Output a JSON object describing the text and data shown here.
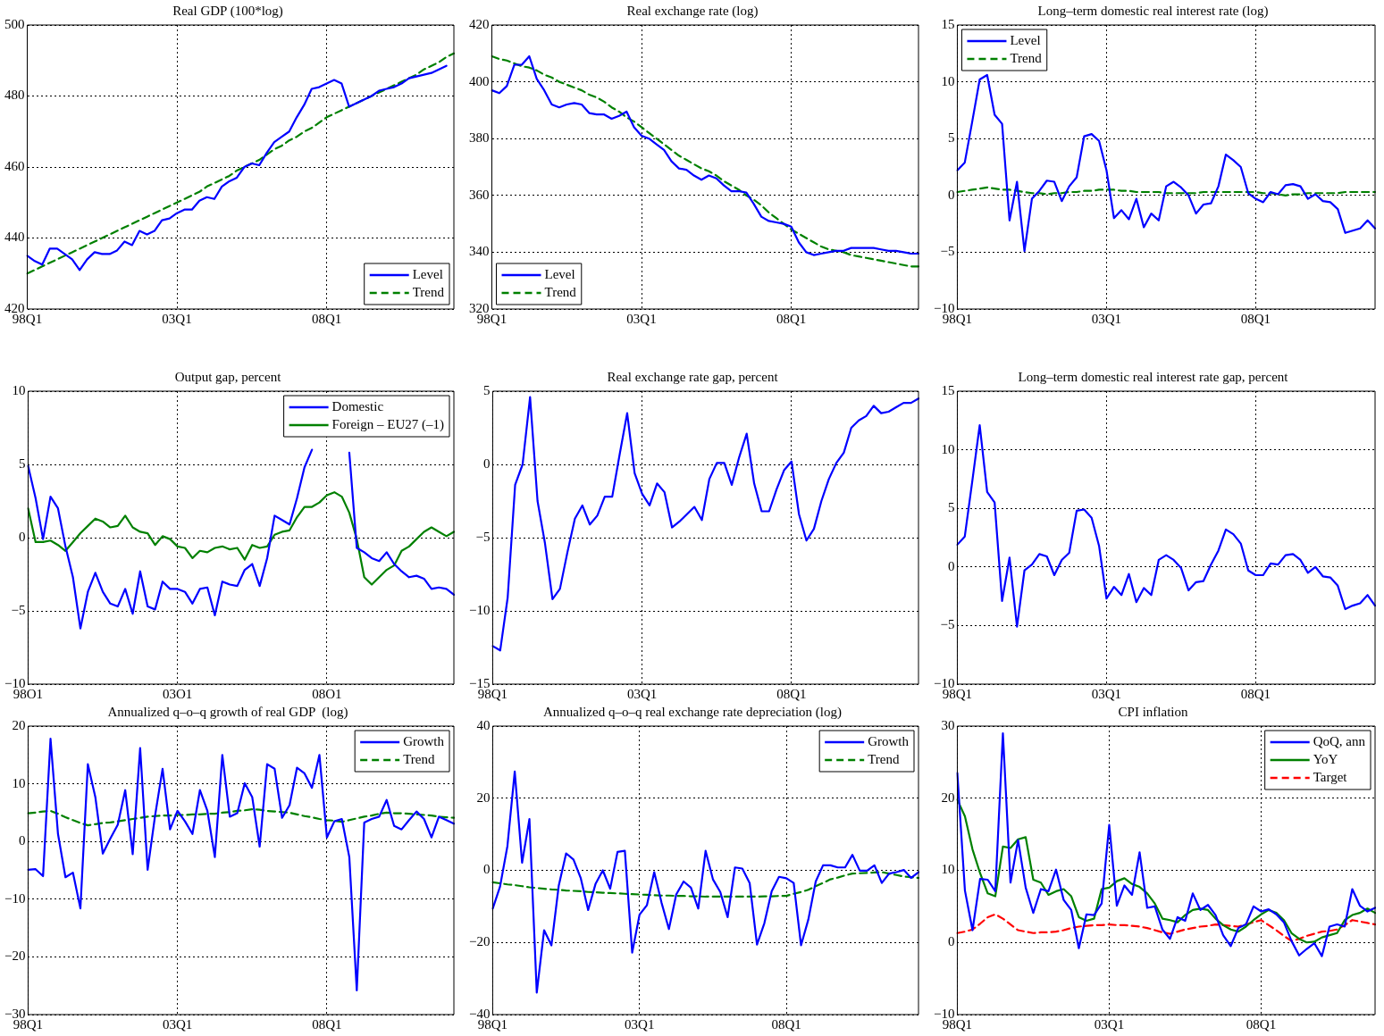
{
  "chart_data": [
    {
      "type": "line",
      "title": "Real GDP (100*log)",
      "categories": [
        "98Q1",
        null,
        null,
        null,
        null,
        null,
        null,
        null,
        null,
        null,
        null,
        null,
        null,
        null,
        null,
        null,
        null,
        null,
        null,
        null,
        "03Q1",
        null,
        null,
        null,
        null,
        null,
        null,
        null,
        null,
        null,
        null,
        null,
        null,
        null,
        null,
        null,
        null,
        null,
        null,
        null,
        "08Q1",
        null,
        null,
        null,
        null,
        null,
        null,
        null,
        null,
        null,
        null,
        null,
        null,
        null,
        null,
        null,
        null,
        null
      ],
      "ylim": [
        420,
        500
      ],
      "yticks": [
        420,
        440,
        460,
        480,
        500
      ],
      "grid": true,
      "legend": "bottom right",
      "series": [
        {
          "name": "Level",
          "color": "#0000ff",
          "line_style": "solid",
          "values": [
            435,
            433.5,
            432.5,
            437,
            437,
            435.5,
            434,
            431,
            434,
            436,
            435.5,
            435.5,
            436.5,
            439,
            438,
            442,
            441,
            442,
            445,
            445.5,
            447,
            448,
            448,
            450.5,
            451.5,
            451,
            454.5,
            456,
            457,
            460,
            461,
            460.5,
            464,
            467,
            468.5,
            470,
            474,
            477.5,
            482,
            482.5,
            483.5,
            484.5,
            483.5,
            477,
            478,
            479,
            480,
            481.5,
            482,
            482.5,
            483.5,
            485,
            485.5,
            486,
            486.5,
            487.5,
            488.5,
            null
          ]
        },
        {
          "name": "Trend",
          "color": "#008000",
          "line_style": "dashed",
          "values": [
            430,
            431,
            432,
            433,
            434,
            435,
            436,
            437,
            438,
            439,
            440,
            441,
            442,
            443,
            444,
            445,
            446,
            447,
            448,
            449,
            450,
            451,
            452,
            453,
            454.5,
            455.5,
            456.5,
            457.5,
            459,
            460,
            461,
            462,
            463.5,
            465,
            466,
            467.5,
            468.5,
            470,
            471,
            472.5,
            474,
            475,
            476,
            477,
            478,
            479,
            480,
            481,
            482,
            483,
            484,
            485,
            486,
            487.5,
            488.5,
            489.5,
            491,
            492
          ]
        }
      ]
    },
    {
      "type": "line",
      "title": "Real exchange rate (log)",
      "categories": [
        "98Q1",
        null,
        null,
        null,
        null,
        null,
        null,
        null,
        null,
        null,
        null,
        null,
        null,
        null,
        null,
        null,
        null,
        null,
        null,
        null,
        "03Q1",
        null,
        null,
        null,
        null,
        null,
        null,
        null,
        null,
        null,
        null,
        null,
        null,
        null,
        null,
        null,
        null,
        null,
        null,
        null,
        "08Q1",
        null,
        null,
        null,
        null,
        null,
        null,
        null,
        null,
        null,
        null,
        null,
        null,
        null,
        null,
        null,
        null,
        null
      ],
      "ylim": [
        320,
        420
      ],
      "yticks": [
        320,
        340,
        360,
        380,
        400,
        420
      ],
      "grid": true,
      "legend": "bottom left",
      "series": [
        {
          "name": "Level",
          "color": "#0000ff",
          "line_style": "solid",
          "values": [
            397,
            396,
            398.5,
            406,
            406,
            409,
            401,
            397,
            392,
            391,
            392,
            392.5,
            392,
            389,
            388.5,
            388.5,
            387,
            388,
            389.5,
            384,
            381,
            380,
            378,
            376,
            372,
            369.5,
            369,
            367,
            365.5,
            367,
            366,
            363.5,
            361.5,
            361.5,
            361,
            357,
            352.5,
            351,
            350.5,
            350,
            349,
            343.5,
            340,
            339,
            339.5,
            340,
            340.5,
            340.5,
            341.5,
            341.5,
            341.5,
            341.5,
            341,
            340.5,
            340.5,
            340,
            339.5,
            339.5
          ]
        },
        {
          "name": "Trend",
          "color": "#008000",
          "line_style": "dashed",
          "values": [
            409,
            408,
            407.5,
            406.5,
            405.5,
            405,
            404,
            402.5,
            401.5,
            400,
            399,
            398,
            397,
            395.5,
            394.5,
            393,
            391,
            389.5,
            387.5,
            386,
            384,
            382,
            380,
            378,
            376,
            374,
            372.5,
            371,
            369.5,
            368.5,
            367,
            365,
            363.5,
            362,
            360,
            358.5,
            356.5,
            354,
            352,
            350,
            348,
            346.5,
            345,
            343.5,
            342,
            341,
            340.5,
            340,
            339,
            338.5,
            338,
            337.5,
            337,
            336.5,
            336,
            335.5,
            335,
            335
          ]
        }
      ]
    },
    {
      "type": "line",
      "title": "Long–term domestic real interest rate (log)",
      "categories": [
        "98Q1",
        null,
        null,
        null,
        null,
        null,
        null,
        null,
        null,
        null,
        null,
        null,
        null,
        null,
        null,
        null,
        null,
        null,
        null,
        null,
        "03Q1",
        null,
        null,
        null,
        null,
        null,
        null,
        null,
        null,
        null,
        null,
        null,
        null,
        null,
        null,
        null,
        null,
        null,
        null,
        null,
        "08Q1",
        null,
        null,
        null,
        null,
        null,
        null,
        null,
        null,
        null,
        null,
        null,
        null,
        null,
        null,
        null,
        null
      ],
      "ylim": [
        -10,
        15
      ],
      "yticks": [
        {
          "value": -10,
          "label": "−10"
        },
        {
          "value": -5,
          "label": "−5"
        },
        0,
        5,
        10,
        15
      ],
      "grid": true,
      "legend": "top left",
      "series": [
        {
          "name": "Level",
          "color": "#0000ff",
          "line_style": "solid",
          "values": [
            2.2,
            2.9,
            6.5,
            10.2,
            10.6,
            7.1,
            6.3,
            -2.2,
            1.2,
            -4.9,
            -0.3,
            0.4,
            1.3,
            1.2,
            -0.5,
            0.8,
            1.6,
            5.2,
            5.4,
            4.8,
            2.2,
            -2,
            -1.3,
            -2.1,
            -0.3,
            -2.8,
            -1.6,
            -2.2,
            0.8,
            1.2,
            0.7,
            0,
            -1.6,
            -0.8,
            -0.7,
            0.8,
            3.6,
            3.1,
            2.5,
            0.2,
            -0.3,
            -0.6,
            0.3,
            0.1,
            0.9,
            1,
            0.8,
            -0.3,
            0.1,
            -0.5,
            -0.6,
            -1.2,
            -3.3,
            -3.1,
            -2.9,
            -2.2,
            -2.9
          ]
        },
        {
          "name": "Trend",
          "color": "#008000",
          "line_style": "dashed",
          "values": [
            0.3,
            0.4,
            0.5,
            0.6,
            0.7,
            0.6,
            0.5,
            0.5,
            0.4,
            0.3,
            0.2,
            0.2,
            0.1,
            0.2,
            0.2,
            0.3,
            0.3,
            0.4,
            0.4,
            0.5,
            0.5,
            0.5,
            0.4,
            0.4,
            0.3,
            0.3,
            0.3,
            0.3,
            0.2,
            0.2,
            0.2,
            0.2,
            0.2,
            0.3,
            0.3,
            0.3,
            0.3,
            0.3,
            0.3,
            0.3,
            0.3,
            0.2,
            0.2,
            0.1,
            0,
            0.1,
            0.1,
            0.2,
            0.2,
            0.2,
            0.2,
            0.2,
            0.3,
            0.3,
            0.3,
            0.3,
            0.3
          ]
        }
      ]
    },
    {
      "type": "line",
      "title": "Output gap, percent",
      "categories": [
        "98O1",
        null,
        null,
        null,
        null,
        null,
        null,
        null,
        null,
        null,
        null,
        null,
        null,
        null,
        null,
        null,
        null,
        null,
        null,
        null,
        "03O1",
        null,
        null,
        null,
        null,
        null,
        null,
        null,
        null,
        null,
        null,
        null,
        null,
        null,
        null,
        null,
        null,
        null,
        null,
        null,
        "08O1",
        null,
        null,
        null,
        null,
        null,
        null,
        null,
        null,
        null,
        null,
        null,
        null,
        null,
        null,
        null,
        null,
        null
      ],
      "ylim": [
        -10,
        10
      ],
      "yticks": [
        {
          "value": -10,
          "label": "−10"
        },
        {
          "value": -5,
          "label": "−5"
        },
        0,
        5,
        10
      ],
      "grid": true,
      "legend": "top right",
      "series": [
        {
          "name": "Domestic",
          "color": "#0000ff",
          "line_style": "solid",
          "values": [
            4.9,
            2.7,
            -0.1,
            2.8,
            2,
            -0.6,
            -2.7,
            -6.2,
            -3.7,
            -2.4,
            -3.7,
            -4.5,
            -4.7,
            -3.5,
            -5.2,
            -2.3,
            -4.7,
            -4.9,
            -3,
            -3.5,
            -3.5,
            -3.7,
            -4.5,
            -3.5,
            -3.4,
            -5.3,
            -3,
            -3.2,
            -3.3,
            -2.2,
            -1.8,
            -3.3,
            -1.4,
            1.5,
            1.2,
            0.9,
            2.7,
            4.8,
            6,
            null,
            null,
            null,
            null,
            5.8,
            -0.7,
            -1,
            -1.4,
            -1.6,
            -1,
            -1.8,
            -2.3,
            -2.7,
            -2.6,
            -2.8,
            -3.5,
            -3.4,
            -3.5,
            -3.9
          ]
        },
        {
          "name": "Foreign – EU27 (–1)",
          "color": "#008000",
          "line_style": "solid",
          "values": [
            2,
            -0.3,
            -0.3,
            -0.2,
            -0.5,
            -0.9,
            -0.3,
            0.3,
            0.8,
            1.3,
            1.1,
            0.7,
            0.8,
            1.5,
            0.7,
            0.4,
            0.3,
            -0.5,
            0.1,
            -0.1,
            -0.6,
            -0.7,
            -1.4,
            -0.9,
            -1,
            -0.7,
            -0.6,
            -0.8,
            -0.7,
            -1.5,
            -0.5,
            -0.7,
            -0.6,
            0.2,
            0.4,
            0.5,
            1.4,
            2.1,
            2.1,
            2.4,
            2.9,
            3.1,
            2.8,
            1.7,
            -0.1,
            -2.7,
            -3.2,
            -2.7,
            -2.2,
            -1.9,
            -0.9,
            -0.6,
            -0.1,
            0.4,
            0.7,
            0.4,
            0.1,
            0.4
          ]
        }
      ]
    },
    {
      "type": "line",
      "title": "Real exchange rate gap, percent",
      "categories": [
        "98Q1",
        null,
        null,
        null,
        null,
        null,
        null,
        null,
        null,
        null,
        null,
        null,
        null,
        null,
        null,
        null,
        null,
        null,
        null,
        null,
        "03Q1",
        null,
        null,
        null,
        null,
        null,
        null,
        null,
        null,
        null,
        null,
        null,
        null,
        null,
        null,
        null,
        null,
        null,
        null,
        null,
        "08Q1",
        null,
        null,
        null,
        null,
        null,
        null,
        null,
        null,
        null,
        null,
        null,
        null,
        null,
        null,
        null,
        null,
        null
      ],
      "ylim": [
        -15,
        5
      ],
      "yticks": [
        {
          "value": -15,
          "label": "−15"
        },
        {
          "value": -10,
          "label": "−10"
        },
        {
          "value": -5,
          "label": "−5"
        },
        0,
        5
      ],
      "grid": true,
      "series": [
        {
          "color": "#0000ff",
          "line_style": "solid",
          "values": [
            -12.4,
            -12.7,
            -9.1,
            -1.4,
            0,
            4.6,
            -2.5,
            -5.4,
            -9.2,
            -8.5,
            -6,
            -3.7,
            -2.8,
            -4.1,
            -3.5,
            -2.2,
            -2.2,
            0.7,
            3.5,
            -0.6,
            -2,
            -2.8,
            -1.3,
            -1.9,
            -4.3,
            -3.9,
            -3.4,
            -2.9,
            -3.8,
            -1,
            0.1,
            0.1,
            -1.4,
            0.5,
            2.1,
            -1.3,
            -3.2,
            -3.2,
            -1.7,
            -0.4,
            0.2,
            -3.4,
            -5.2,
            -4.4,
            -2.5,
            -1,
            0.1,
            0.8,
            2.5,
            3,
            3.3,
            4,
            3.5,
            3.6,
            3.9,
            4.2,
            4.2,
            4.5
          ]
        }
      ]
    },
    {
      "type": "line",
      "title": "Long–term domestic real interest rate gap, percent",
      "categories": [
        "98Q1",
        null,
        null,
        null,
        null,
        null,
        null,
        null,
        null,
        null,
        null,
        null,
        null,
        null,
        null,
        null,
        null,
        null,
        null,
        null,
        "03Q1",
        null,
        null,
        null,
        null,
        null,
        null,
        null,
        null,
        null,
        null,
        null,
        null,
        null,
        null,
        null,
        null,
        null,
        null,
        null,
        "08Q1",
        null,
        null,
        null,
        null,
        null,
        null,
        null,
        null,
        null,
        null,
        null,
        null,
        null,
        null,
        null,
        null
      ],
      "ylim": [
        -10,
        15
      ],
      "yticks": [
        {
          "value": -10,
          "label": "−10"
        },
        {
          "value": -5,
          "label": "−5"
        },
        0,
        5,
        10,
        15
      ],
      "grid": true,
      "series": [
        {
          "color": "#0000ff",
          "line_style": "solid",
          "values": [
            1.9,
            2.6,
            7.3,
            12.1,
            6.4,
            5.5,
            -2.9,
            0.8,
            -5.1,
            -0.3,
            0.2,
            1.1,
            0.9,
            -0.7,
            0.6,
            1.2,
            4.8,
            4.9,
            4.2,
            1.8,
            -2.7,
            -1.7,
            -2.4,
            -0.6,
            -3,
            -1.8,
            -2.4,
            0.6,
            1,
            0.6,
            -0.1,
            -2,
            -1.3,
            -1.2,
            0.2,
            1.4,
            3.2,
            2.8,
            2,
            -0.3,
            -0.7,
            -0.7,
            0.3,
            0.2,
            1,
            1.1,
            0.6,
            -0.5,
            0,
            -0.8,
            -0.9,
            -1.6,
            -3.6,
            -3.3,
            -3.1,
            -2.4,
            -3.3
          ]
        }
      ]
    },
    {
      "type": "line",
      "title": "Annualized q–o–q growth of real GDP  (log)",
      "categories": [
        "98Q1",
        null,
        null,
        null,
        null,
        null,
        null,
        null,
        null,
        null,
        null,
        null,
        null,
        null,
        null,
        null,
        null,
        null,
        null,
        null,
        "03Q1",
        null,
        null,
        null,
        null,
        null,
        null,
        null,
        null,
        null,
        null,
        null,
        null,
        null,
        null,
        null,
        null,
        null,
        null,
        null,
        "08Q1",
        null,
        null,
        null,
        null,
        null,
        null,
        null,
        null,
        null,
        null,
        null,
        null,
        null,
        null,
        null,
        null,
        null
      ],
      "ylim": [
        -30,
        20
      ],
      "yticks": [
        {
          "value": -30,
          "label": "−30"
        },
        {
          "value": -20,
          "label": "−20"
        },
        {
          "value": -10,
          "label": "−10"
        },
        0,
        10,
        20
      ],
      "grid": true,
      "legend": "top right",
      "series": [
        {
          "name": "Growth",
          "color": "#0000ff",
          "line_style": "solid",
          "values": [
            -4.9,
            -4.8,
            -6,
            17.8,
            1.3,
            -6.2,
            -5.4,
            -11.6,
            13.4,
            7.7,
            -2.1,
            0.5,
            2.9,
            8.9,
            -2.2,
            16.2,
            -4.9,
            4.5,
            12.6,
            2.1,
            5.3,
            3.5,
            1.3,
            8.9,
            5.3,
            -2.7,
            15,
            4.3,
            4.9,
            10.1,
            7.7,
            -0.9,
            13.4,
            12.6,
            4.1,
            6.3,
            12.8,
            11.8,
            9.3,
            15,
            0.7,
            3.5,
            3.9,
            -2.7,
            -25.8,
            3.3,
            3.9,
            4.3,
            7.2,
            2.7,
            2.1,
            3.7,
            5.2,
            3.9,
            0.7,
            4.3,
            3.7,
            3.1
          ]
        },
        {
          "name": "Trend",
          "color": "#008000",
          "line_style": "dashed",
          "values": [
            4.9,
            5,
            5.2,
            5.3,
            4.8,
            4.2,
            3.7,
            3.2,
            2.8,
            3,
            3.2,
            3.3,
            3.5,
            3.7,
            3.9,
            4.1,
            4.3,
            4.4,
            4.5,
            4.5,
            4.6,
            4.6,
            4.7,
            4.7,
            4.8,
            4.8,
            5,
            5.1,
            5.3,
            5.4,
            5.6,
            5.5,
            5.3,
            5.2,
            5.1,
            5,
            4.7,
            4.4,
            4.2,
            3.9,
            3.7,
            3.6,
            3.4,
            3.7,
            4,
            4.3,
            4.5,
            4.8,
            5,
            4.9,
            4.9,
            4.8,
            4.7,
            4.6,
            4.5,
            4.3,
            4.2,
            4.1
          ]
        }
      ]
    },
    {
      "type": "line",
      "title": "Annualized q–o–q real exchange rate depreciation (log)",
      "categories": [
        "98Q1",
        null,
        null,
        null,
        null,
        null,
        null,
        null,
        null,
        null,
        null,
        null,
        null,
        null,
        null,
        null,
        null,
        null,
        null,
        null,
        "03Q1",
        null,
        null,
        null,
        null,
        null,
        null,
        null,
        null,
        null,
        null,
        null,
        null,
        null,
        null,
        null,
        null,
        null,
        null,
        null,
        "08Q1",
        null,
        null,
        null,
        null,
        null,
        null,
        null,
        null,
        null,
        null,
        null,
        null,
        null,
        null,
        null,
        null,
        null,
        null
      ],
      "ylim": [
        -40,
        40
      ],
      "yticks": [
        {
          "value": -40,
          "label": "−40"
        },
        {
          "value": -20,
          "label": "−20"
        },
        0,
        20,
        40
      ],
      "grid": true,
      "legend": "top right",
      "series": [
        {
          "name": "Growth",
          "color": "#0000ff",
          "line_style": "solid",
          "values": [
            -10.6,
            -4.5,
            6.7,
            27.4,
            2.1,
            14.2,
            -33.9,
            -16.6,
            -20.8,
            -4.2,
            4.7,
            3,
            -2.2,
            -11,
            -3.8,
            0,
            -5.1,
            5.1,
            5.4,
            -22.8,
            -12.3,
            -9.7,
            -0.5,
            -9,
            -16.3,
            -6.7,
            -3.1,
            -4.8,
            -10.6,
            5.4,
            -2.5,
            -6,
            -13,
            0.8,
            0.5,
            -3.5,
            -20.6,
            -14.7,
            -5.8,
            -1.8,
            -2.2,
            -3.5,
            -20.8,
            -13.6,
            -3.1,
            1.4,
            1.4,
            0.8,
            0.8,
            4.3,
            -0.1,
            -0.1,
            1.4,
            -3.5,
            -0.9,
            -0.5,
            0.1,
            -2.1,
            -0.5
          ]
        },
        {
          "name": "Trend",
          "color": "#008000",
          "line_style": "dashed",
          "values": [
            -3.3,
            -3.6,
            -3.9,
            -4.1,
            -4.4,
            -4.7,
            -4.9,
            -5.1,
            -5.3,
            -5.4,
            -5.6,
            -5.7,
            -5.8,
            -6,
            -6.1,
            -6.2,
            -6.3,
            -6.4,
            -6.5,
            -6.6,
            -6.7,
            -6.8,
            -6.9,
            -7,
            -7,
            -7.1,
            -7.1,
            -7.2,
            -7.2,
            -7.3,
            -7.3,
            -7.3,
            -7.3,
            -7.3,
            -7.3,
            -7.3,
            -7.3,
            -7.2,
            -7.2,
            -7.1,
            -7.1,
            -6.5,
            -6,
            -5.4,
            -4.4,
            -3.5,
            -2.5,
            -2,
            -1.4,
            -0.9,
            -0.8,
            -0.7,
            -0.6,
            -0.5,
            -0.9,
            -1.3,
            -1.7,
            -1.9,
            -2.1
          ]
        }
      ]
    },
    {
      "type": "line",
      "title": "CPI inflation",
      "categories": [
        "98Q1",
        null,
        null,
        null,
        null,
        null,
        null,
        null,
        null,
        null,
        null,
        null,
        null,
        null,
        null,
        null,
        null,
        null,
        null,
        null,
        "03Q1",
        null,
        null,
        null,
        null,
        null,
        null,
        null,
        null,
        null,
        null,
        null,
        null,
        null,
        null,
        null,
        null,
        null,
        null,
        null,
        "08Q1",
        null,
        null,
        null,
        null,
        null,
        null,
        null,
        null,
        null,
        null,
        null,
        null,
        null,
        null,
        null
      ],
      "ylim": [
        -10,
        30
      ],
      "yticks": [
        {
          "value": -10,
          "label": "−10"
        },
        0,
        10,
        20,
        30
      ],
      "grid": true,
      "legend": "top right",
      "series": [
        {
          "name": "QoQ, ann",
          "color": "#0000ff",
          "line_style": "solid",
          "values": [
            23.5,
            7.2,
            1.7,
            8.8,
            8.7,
            7.1,
            29,
            8.3,
            14.2,
            7.6,
            4.1,
            7.4,
            7.1,
            10.1,
            5.9,
            4.5,
            -0.8,
            3.9,
            3.8,
            5.4,
            16.3,
            5.1,
            7.9,
            6.6,
            12.5,
            4.8,
            5,
            1.8,
            0.5,
            3.5,
            3,
            6.8,
            4.5,
            5.2,
            3.8,
            1,
            -0.5,
            2,
            2.5,
            5,
            4.3,
            4.6,
            3.9,
            2.8,
            0.2,
            -1.8,
            -0.9,
            -0.1,
            -1.9,
            2.2,
            2.5,
            2.2,
            7.4,
            5.1,
            4.3,
            4.8
          ]
        },
        {
          "name": "YoY",
          "color": "#008000",
          "line_style": "solid",
          "values": [
            19.8,
            17.5,
            12.9,
            9.6,
            6.8,
            6.4,
            13.3,
            13.1,
            14.3,
            14.6,
            8.7,
            8.3,
            6.6,
            7.1,
            7.4,
            6.4,
            3.5,
            3,
            3.3,
            7.4,
            7.6,
            8.5,
            8.9,
            8.1,
            7.7,
            6.8,
            5.4,
            3.3,
            3.1,
            2.8,
            3.8,
            4.5,
            4.7,
            4.5,
            3.3,
            2.4,
            1.8,
            1.5,
            2.2,
            3.1,
            3.9,
            4.5,
            4.1,
            3.1,
            1.3,
            0.5,
            0,
            0.1,
            0.7,
            1,
            1.3,
            3.1,
            3.8,
            4.1,
            4.7,
            4.1
          ]
        },
        {
          "name": "Target",
          "color": "#ff0000",
          "line_style": "dashed",
          "values": [
            1.3,
            1.5,
            1.8,
            2.6,
            3.5,
            3.9,
            3.3,
            2.5,
            1.7,
            1.5,
            1.3,
            1.4,
            1.4,
            1.5,
            1.7,
            2,
            2.2,
            2.3,
            2.4,
            2.4,
            2.5,
            2.4,
            2.4,
            2.3,
            2.2,
            2,
            1.7,
            1.4,
            1.2,
            1.5,
            1.8,
            2,
            2.2,
            2.3,
            2.5,
            2.4,
            2.3,
            2.2,
            2.5,
            2.8,
            3.1,
            2.4,
            1.7,
            0.9,
            0.2,
            0.5,
            0.9,
            1.2,
            1.5,
            1.6,
            1.8,
            2.4,
            3.1,
            2.9,
            2.7,
            2.5
          ]
        }
      ]
    }
  ]
}
